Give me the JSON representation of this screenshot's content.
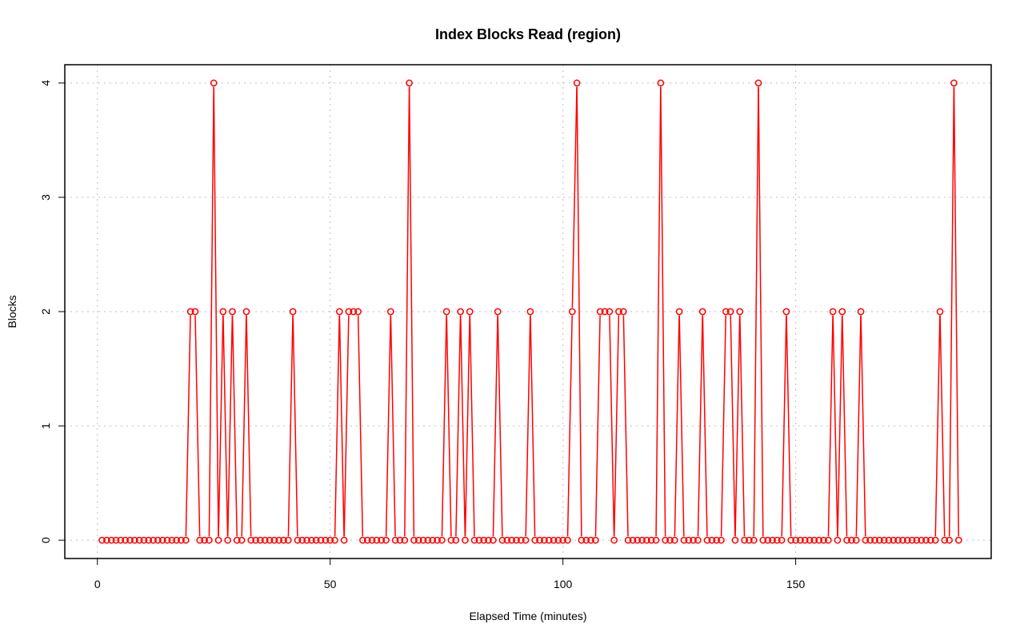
{
  "chart_data": {
    "type": "line",
    "title": "Index Blocks Read (region)",
    "xlabel": "Elapsed Time (minutes)",
    "ylabel": "Blocks",
    "xlim": [
      -7,
      192
    ],
    "ylim": [
      -0.16,
      4.16
    ],
    "x_ticks": [
      0,
      50,
      100,
      150
    ],
    "y_ticks": [
      0,
      1,
      2,
      3,
      4
    ],
    "grid": true,
    "legend": "none",
    "series": [
      {
        "color": "#ff0000",
        "marker": "open-circle",
        "x": [
          1,
          2,
          3,
          4,
          5,
          6,
          7,
          8,
          9,
          10,
          11,
          12,
          13,
          14,
          15,
          16,
          17,
          18,
          19,
          20,
          21,
          22,
          23,
          24,
          25,
          26,
          27,
          28,
          29,
          30,
          31,
          32,
          33,
          34,
          35,
          36,
          37,
          38,
          39,
          40,
          41,
          42,
          43,
          44,
          45,
          46,
          47,
          48,
          49,
          50,
          51,
          52,
          53,
          54,
          55,
          56,
          57,
          58,
          59,
          60,
          61,
          62,
          63,
          64,
          65,
          66,
          67,
          68,
          69,
          70,
          71,
          72,
          73,
          74,
          75,
          76,
          77,
          78,
          79,
          80,
          81,
          82,
          83,
          84,
          85,
          86,
          87,
          88,
          89,
          90,
          91,
          92,
          93,
          94,
          95,
          96,
          97,
          98,
          99,
          100,
          101,
          102,
          103,
          104,
          105,
          106,
          107,
          108,
          109,
          110,
          111,
          112,
          113,
          114,
          115,
          116,
          117,
          118,
          119,
          120,
          121,
          122,
          123,
          124,
          125,
          126,
          127,
          128,
          129,
          130,
          131,
          132,
          133,
          134,
          135,
          136,
          137,
          138,
          139,
          140,
          141,
          142,
          143,
          144,
          145,
          146,
          147,
          148,
          149,
          150,
          151,
          152,
          153,
          154,
          155,
          156,
          157,
          158,
          159,
          160,
          161,
          162,
          163,
          164,
          165,
          166,
          167,
          168,
          169,
          170,
          171,
          172,
          173,
          174,
          175,
          176,
          177,
          178,
          179,
          180,
          181,
          182,
          183,
          184,
          185
        ],
        "y": [
          0,
          0,
          0,
          0,
          0,
          0,
          0,
          0,
          0,
          0,
          0,
          0,
          0,
          0,
          0,
          0,
          0,
          0,
          0,
          2,
          2,
          0,
          0,
          0,
          4,
          0,
          2,
          0,
          2,
          0,
          0,
          2,
          0,
          0,
          0,
          0,
          0,
          0,
          0,
          0,
          0,
          2,
          0,
          0,
          0,
          0,
          0,
          0,
          0,
          0,
          0,
          2,
          0,
          2,
          2,
          2,
          0,
          0,
          0,
          0,
          0,
          0,
          2,
          0,
          0,
          0,
          4,
          0,
          0,
          0,
          0,
          0,
          0,
          0,
          2,
          0,
          0,
          2,
          0,
          2,
          0,
          0,
          0,
          0,
          0,
          2,
          0,
          0,
          0,
          0,
          0,
          0,
          2,
          0,
          0,
          0,
          0,
          0,
          0,
          0,
          0,
          2,
          4,
          0,
          0,
          0,
          0,
          2,
          2,
          2,
          0,
          2,
          2,
          0,
          0,
          0,
          0,
          0,
          0,
          0,
          4,
          0,
          0,
          0,
          2,
          0,
          0,
          0,
          0,
          2,
          0,
          0,
          0,
          0,
          2,
          2,
          0,
          2,
          0,
          0,
          0,
          4,
          0,
          0,
          0,
          0,
          0,
          2,
          0,
          0,
          0,
          0,
          0,
          0,
          0,
          0,
          0,
          2,
          0,
          2,
          0,
          0,
          0,
          2,
          0,
          0,
          0,
          0,
          0,
          0,
          0,
          0,
          0,
          0,
          0,
          0,
          0,
          0,
          0,
          0,
          2,
          0,
          0,
          4,
          0
        ]
      }
    ]
  }
}
